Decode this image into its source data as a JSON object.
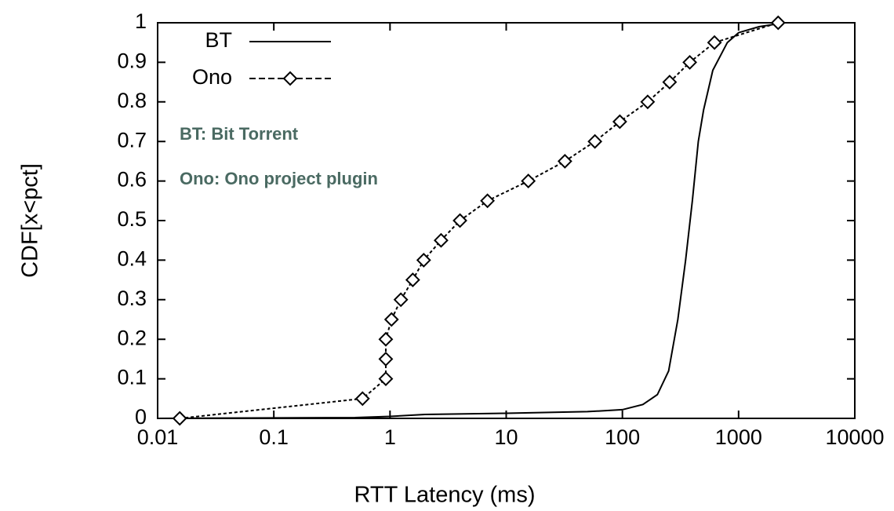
{
  "chart_data": {
    "type": "line",
    "x_label": "RTT Latency (ms)",
    "y_label": "CDF[x<pct]",
    "xscale": "log",
    "xlim": [
      0.01,
      10000
    ],
    "ylim": [
      0,
      1
    ],
    "xticks": [
      0.01,
      0.1,
      1,
      10,
      100,
      1000,
      10000
    ],
    "yticks": [
      0,
      0.1,
      0.2,
      0.3,
      0.4,
      0.5,
      0.6,
      0.7,
      0.8,
      0.9,
      1
    ],
    "legend": "upper-left",
    "annotations": [
      "BT: Bit Torrent",
      "Ono: Ono project plugin"
    ],
    "series": [
      {
        "name": "BT",
        "color": "#000000",
        "dash": false,
        "marker": "none",
        "x": [
          0.01,
          0.5,
          1,
          2,
          10,
          50,
          100,
          150,
          200,
          250,
          300,
          350,
          400,
          450,
          500,
          600,
          800,
          1000,
          1500,
          2500
        ],
        "values": [
          0,
          0.002,
          0.005,
          0.01,
          0.013,
          0.017,
          0.022,
          0.035,
          0.06,
          0.12,
          0.25,
          0.4,
          0.55,
          0.7,
          0.78,
          0.88,
          0.95,
          0.975,
          0.99,
          1
        ]
      },
      {
        "name": "Ono",
        "color": "#000000",
        "dash": true,
        "marker": "diamond",
        "x": [
          0.0155,
          0.58,
          0.92,
          0.92,
          0.92,
          1.03,
          1.24,
          1.57,
          1.95,
          2.75,
          4.0,
          6.9,
          15.5,
          32,
          58,
          95,
          165,
          255,
          380,
          620,
          2190
        ],
        "values": [
          0,
          0.05,
          0.1,
          0.15,
          0.2,
          0.25,
          0.3,
          0.35,
          0.4,
          0.45,
          0.5,
          0.55,
          0.6,
          0.65,
          0.7,
          0.75,
          0.8,
          0.85,
          0.9,
          0.95,
          1
        ]
      }
    ]
  }
}
